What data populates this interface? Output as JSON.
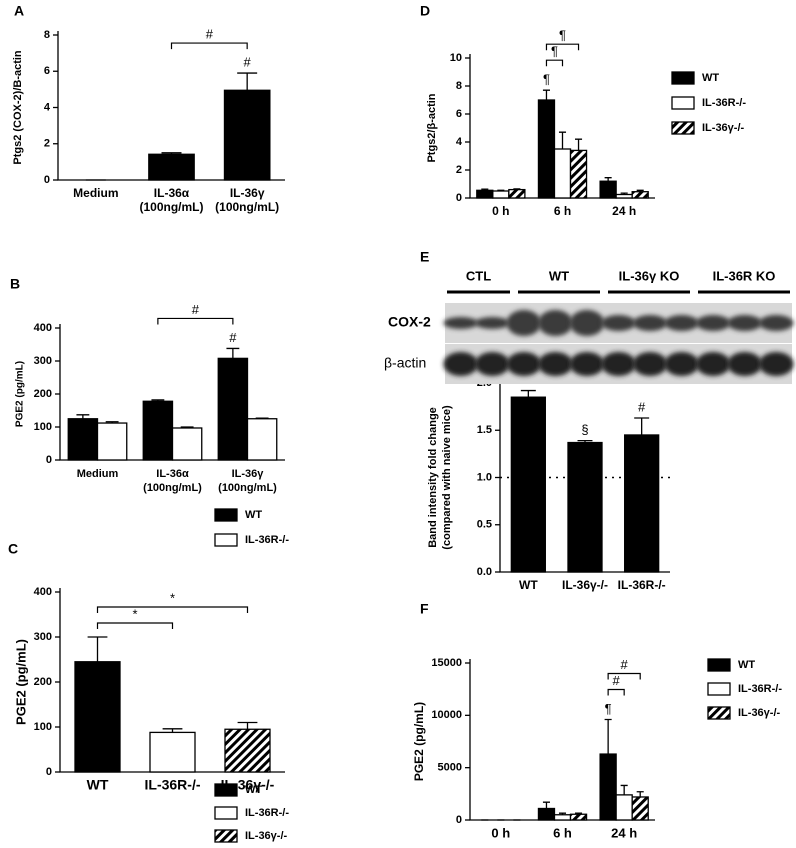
{
  "chart_data": [
    {
      "panel": "A",
      "type": "bar",
      "ylabel": "Ptgs2 (COX-2)/B-actin",
      "categories": [
        "Medium",
        "IL-36α\n(100ng/mL)",
        "IL-36γ\n(100ng/mL)"
      ],
      "values": [
        0,
        1.42,
        4.95
      ],
      "errors": [
        0,
        0.08,
        0.95
      ],
      "colors": [
        "#000000",
        "#000000",
        "#000000"
      ],
      "ylim": [
        0,
        8
      ],
      "yticks": [
        0,
        2,
        4,
        6,
        8
      ],
      "annotations": [
        {
          "text": "#",
          "at": 2
        },
        {
          "text": "#",
          "bracket": [
            1,
            2
          ]
        }
      ]
    },
    {
      "panel": "B",
      "type": "grouped_bar",
      "ylabel": "PGE2 (pg/mL)",
      "categories": [
        "Medium",
        "IL-36α\n(100ng/mL)",
        "IL-36γ\n(100ng/mL)"
      ],
      "series": [
        {
          "name": "WT",
          "color": "#000000",
          "values": [
            125,
            178,
            308
          ],
          "errors": [
            12,
            4,
            30
          ]
        },
        {
          "name": "IL-36R-/-",
          "color": "#ffffff",
          "values": [
            112,
            97,
            125
          ],
          "errors": [
            4,
            3,
            2
          ]
        }
      ],
      "ylim": [
        0,
        400
      ],
      "yticks": [
        0,
        100,
        200,
        300,
        400
      ],
      "annotations": [
        {
          "text": "#",
          "at": [
            2,
            0
          ]
        },
        {
          "text": "#",
          "bracket": [
            [
              1,
              0
            ],
            [
              2,
              0
            ]
          ]
        }
      ]
    },
    {
      "panel": "C",
      "type": "bar",
      "ylabel": "PGE2 (pg/mL)",
      "categories": [
        "WT",
        "IL-36R-/-",
        "IL-36γ-/-"
      ],
      "values": [
        245,
        88,
        95
      ],
      "errors": [
        55,
        8,
        15
      ],
      "colors": [
        "#000000",
        "#ffffff",
        "hatch"
      ],
      "legend": [
        {
          "name": "WT",
          "color": "#000000"
        },
        {
          "name": "IL-36R-/-",
          "color": "#ffffff"
        },
        {
          "name": "IL-36γ-/-",
          "color": "hatch"
        }
      ],
      "ylim": [
        0,
        400
      ],
      "yticks": [
        0,
        100,
        200,
        300,
        400
      ],
      "annotations": [
        {
          "text": "*",
          "bracket": [
            0,
            1
          ]
        },
        {
          "text": "*",
          "bracket": [
            0,
            2
          ]
        }
      ]
    },
    {
      "panel": "D",
      "type": "grouped_bar",
      "ylabel": "Ptgs2/β-actin",
      "categories": [
        "0 h",
        "6 h",
        "24 h"
      ],
      "series": [
        {
          "name": "WT",
          "color": "#000000",
          "values": [
            0.55,
            7.0,
            1.2
          ],
          "errors": [
            0.08,
            0.7,
            0.25
          ]
        },
        {
          "name": "IL-36R-/-",
          "color": "#ffffff",
          "values": [
            0.5,
            3.5,
            0.25
          ],
          "errors": [
            0.05,
            1.2,
            0.1
          ]
        },
        {
          "name": "IL-36γ-/-",
          "color": "hatch",
          "values": [
            0.6,
            3.4,
            0.45
          ],
          "errors": [
            0.05,
            0.8,
            0.1
          ]
        }
      ],
      "ylim": [
        0,
        10
      ],
      "yticks": [
        0,
        2,
        4,
        6,
        8,
        10
      ],
      "annotations": [
        {
          "text": "¶",
          "at": [
            1,
            0
          ]
        },
        {
          "text": "¶",
          "bracket": [
            [
              1,
              0
            ],
            [
              1,
              1
            ]
          ]
        },
        {
          "text": "¶",
          "bracket": [
            [
              1,
              0
            ],
            [
              1,
              2
            ]
          ]
        }
      ]
    },
    {
      "panel": "E",
      "type": "bar",
      "ylabel": "Band intensity fold change\n(compared with naive mice)",
      "blot": {
        "groups": [
          "CTL",
          "WT",
          "IL-36γ KO",
          "IL-36R KO"
        ],
        "rows": [
          "COX-2",
          "β-actin"
        ]
      },
      "categories": [
        "WT",
        "IL-36γ-/-",
        "IL-36R-/-"
      ],
      "values": [
        1.85,
        1.37,
        1.45
      ],
      "errors": [
        0.07,
        0.02,
        0.18
      ],
      "colors": [
        "#000000",
        "#000000",
        "#000000"
      ],
      "refline": 1,
      "ylim": [
        0,
        2
      ],
      "yticks": [
        {
          "value": 0,
          "label": "0.0"
        },
        {
          "value": 0.5,
          "label": "0.5"
        },
        {
          "value": 1,
          "label": "1.0"
        },
        {
          "value": 1.5,
          "label": "1.5"
        },
        {
          "value": 2,
          "label": "2.0"
        }
      ],
      "annotations": [
        {
          "text": "§",
          "at": 1
        },
        {
          "text": "#",
          "at": 2
        }
      ]
    },
    {
      "panel": "F",
      "type": "grouped_bar",
      "ylabel": "PGE2 (pg/mL)",
      "categories": [
        "0 h",
        "6 h",
        "24 h"
      ],
      "series": [
        {
          "name": "WT",
          "color": "#000000",
          "values": [
            0,
            1100,
            6300
          ],
          "errors": [
            0,
            600,
            3300
          ]
        },
        {
          "name": "IL-36R-/-",
          "color": "#ffffff",
          "values": [
            0,
            500,
            2400
          ],
          "errors": [
            0,
            150,
            900
          ]
        },
        {
          "name": "IL-36γ-/-",
          "color": "hatch",
          "values": [
            0,
            550,
            2200
          ],
          "errors": [
            0,
            100,
            500
          ]
        }
      ],
      "ylim": [
        0,
        15000
      ],
      "yticks": [
        0,
        5000,
        10000,
        15000
      ],
      "annotations": [
        {
          "text": "¶",
          "at": [
            2,
            0
          ]
        },
        {
          "text": "#",
          "bracket": [
            [
              2,
              0
            ],
            [
              2,
              1
            ]
          ]
        },
        {
          "text": "#",
          "bracket": [
            [
              2,
              0
            ],
            [
              2,
              2
            ]
          ]
        }
      ]
    }
  ]
}
